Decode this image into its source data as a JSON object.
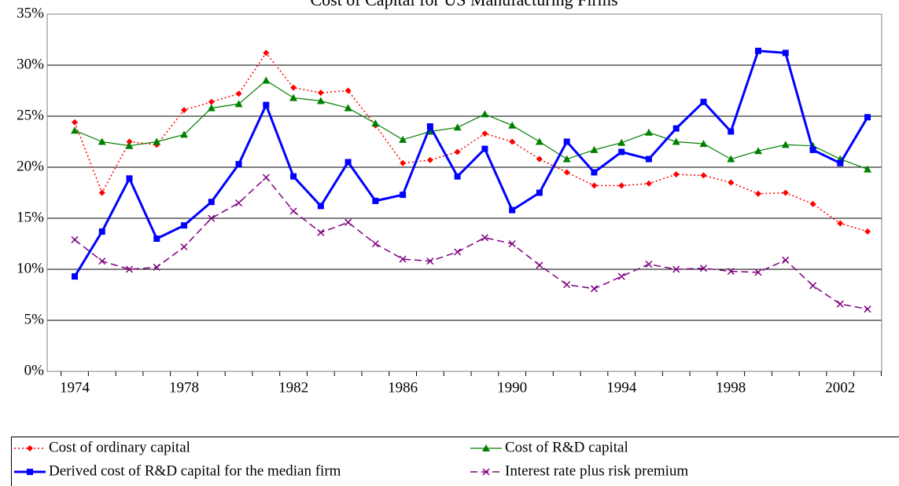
{
  "chart_data": {
    "type": "line",
    "title": "Cost of Capital for US Manufacturing Firms",
    "categories": [
      "1974",
      null,
      null,
      null,
      "1978",
      null,
      null,
      null,
      "1982",
      null,
      null,
      null,
      "1986",
      null,
      null,
      null,
      "1990",
      null,
      null,
      null,
      "1994",
      null,
      null,
      null,
      "1998",
      null,
      null,
      null,
      "2002",
      null
    ],
    "ylim": [
      0,
      35
    ],
    "yticks": [
      {
        "value": 0,
        "label": "0%"
      },
      {
        "value": 5,
        "label": "5%"
      },
      {
        "value": 10,
        "label": "10%"
      },
      {
        "value": 15,
        "label": "15%"
      },
      {
        "value": 20,
        "label": "20%"
      },
      {
        "value": 25,
        "label": "25%"
      },
      {
        "value": 30,
        "label": "30%"
      },
      {
        "value": 35,
        "label": "35%"
      }
    ],
    "grid": true,
    "legend": "bottom",
    "series": [
      {
        "name": "Cost of ordinary capital",
        "color": "#ff0000",
        "marker": "diamond",
        "line_style": "dotted",
        "values": [
          24.4,
          17.5,
          22.5,
          22.2,
          25.6,
          26.4,
          27.2,
          31.2,
          27.8,
          27.3,
          27.5,
          24.1,
          20.4,
          20.7,
          21.5,
          23.3,
          22.5,
          20.8,
          19.5,
          18.2,
          18.2,
          18.4,
          19.3,
          19.2,
          18.5,
          17.4,
          17.5,
          16.4,
          14.5,
          13.7
        ]
      },
      {
        "name": "Cost of R&D capital",
        "color": "#008000",
        "marker": "triangle",
        "line_style": "solid",
        "values": [
          23.6,
          22.5,
          22.1,
          22.5,
          23.2,
          25.8,
          26.2,
          28.5,
          26.8,
          26.5,
          25.8,
          24.3,
          22.7,
          23.5,
          23.9,
          25.2,
          24.1,
          22.5,
          20.8,
          21.7,
          22.4,
          23.4,
          22.5,
          22.3,
          20.8,
          21.6,
          22.2,
          22.1,
          20.8,
          19.8
        ]
      },
      {
        "name": "Derived cost of R&D capital for the median firm",
        "color": "#0000ff",
        "marker": "square",
        "line_style": "thick",
        "values": [
          9.3,
          13.7,
          18.9,
          13.0,
          14.3,
          16.6,
          20.3,
          26.1,
          19.1,
          16.2,
          20.5,
          16.7,
          17.3,
          24.0,
          19.1,
          21.8,
          15.8,
          17.5,
          22.5,
          19.5,
          21.5,
          20.8,
          23.8,
          26.4,
          23.5,
          31.4,
          31.2,
          21.7,
          20.4,
          24.9
        ]
      },
      {
        "name": "Interest rate plus risk premium",
        "color": "#800080",
        "marker": "x",
        "line_style": "dashed",
        "values": [
          12.9,
          10.8,
          10.0,
          10.2,
          12.2,
          15.0,
          16.5,
          19.0,
          15.7,
          13.6,
          14.6,
          12.5,
          11.0,
          10.8,
          11.7,
          13.1,
          12.5,
          10.4,
          8.5,
          8.1,
          9.3,
          10.5,
          10.0,
          10.1,
          9.8,
          9.7,
          10.9,
          8.4,
          6.6,
          6.1
        ]
      }
    ]
  }
}
